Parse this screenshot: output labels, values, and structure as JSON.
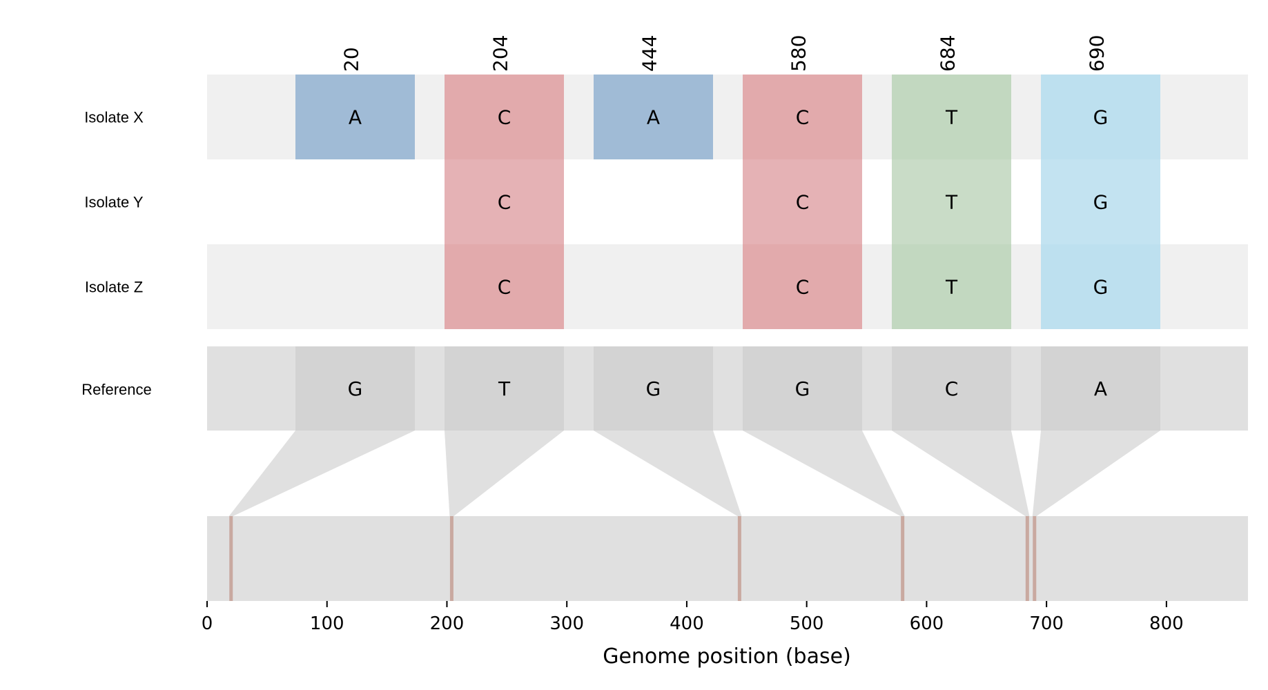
{
  "chart_data": {
    "type": "snp_alignment",
    "title": "",
    "xlabel": "Genome position (base)",
    "xlim": [
      0,
      868
    ],
    "xticks": [
      0,
      100,
      200,
      300,
      400,
      500,
      600,
      700,
      800
    ],
    "positions": [
      20,
      204,
      444,
      580,
      684,
      690
    ],
    "rows": [
      {
        "name": "Isolate X",
        "bases": [
          "A",
          "C",
          "A",
          "C",
          "T",
          "G"
        ]
      },
      {
        "name": "Isolate Y",
        "bases": [
          "",
          "C",
          "",
          "C",
          "T",
          "G"
        ]
      },
      {
        "name": "Isolate Z",
        "bases": [
          "",
          "C",
          "",
          "C",
          "T",
          "G"
        ]
      }
    ],
    "reference": {
      "name": "Reference",
      "bases": [
        "G",
        "T",
        "G",
        "G",
        "C",
        "A"
      ]
    },
    "base_colors": {
      "A": "#9bb7d4",
      "C": "#e0a5a8",
      "T": "#bfd6bd",
      "G": "#b9deee"
    },
    "marker_color": "#c9a9a0"
  }
}
